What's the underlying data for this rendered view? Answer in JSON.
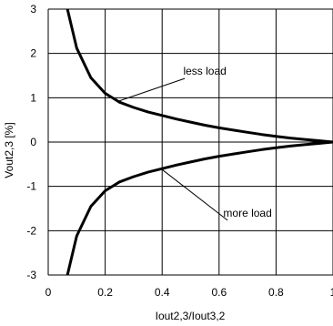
{
  "chart_data": {
    "type": "line",
    "title": "",
    "xlabel": "Iout2,3/Iout3,2",
    "ylabel": "Vout2,3 [%]",
    "xlim": [
      0,
      1
    ],
    "ylim": [
      -3,
      3
    ],
    "grid": true,
    "x_ticks": [
      "0",
      "0.2",
      "0.4",
      "0.6",
      "0.8",
      "1"
    ],
    "y_ticks": [
      "3",
      "2",
      "1",
      "0",
      "-1",
      "-2",
      "-3"
    ],
    "series": [
      {
        "x": [
          0.06,
          0.1,
          0.15,
          0.2,
          0.25,
          0.3,
          0.35,
          0.4,
          0.45,
          0.5,
          0.55,
          0.6,
          0.65,
          0.7,
          0.75,
          0.8,
          0.85,
          0.9,
          0.95,
          1.0
        ],
        "y": [
          3.2,
          2.12,
          1.45,
          1.1,
          0.9,
          0.78,
          0.68,
          0.6,
          0.52,
          0.45,
          0.38,
          0.32,
          0.27,
          0.22,
          0.17,
          0.13,
          0.09,
          0.06,
          0.03,
          0.0
        ]
      },
      {
        "x": [
          0.06,
          0.1,
          0.15,
          0.2,
          0.25,
          0.3,
          0.35,
          0.4,
          0.45,
          0.5,
          0.55,
          0.6,
          0.65,
          0.7,
          0.75,
          0.8,
          0.85,
          0.9,
          0.95,
          1.0
        ],
        "y": [
          -3.2,
          -2.12,
          -1.45,
          -1.1,
          -0.9,
          -0.78,
          -0.68,
          -0.6,
          -0.52,
          -0.45,
          -0.38,
          -0.32,
          -0.27,
          -0.22,
          -0.17,
          -0.13,
          -0.09,
          -0.06,
          -0.03,
          0.0
        ]
      }
    ],
    "annotations": [
      {
        "text": "less load",
        "target": [
          0.25,
          0.93
        ],
        "label_pos": [
          0.55,
          1.6
        ]
      },
      {
        "text": "more load",
        "target": [
          0.4,
          -0.62
        ],
        "label_pos": [
          0.7,
          -1.6
        ]
      }
    ],
    "line_color": "#000000",
    "grid_color": "#000000"
  }
}
